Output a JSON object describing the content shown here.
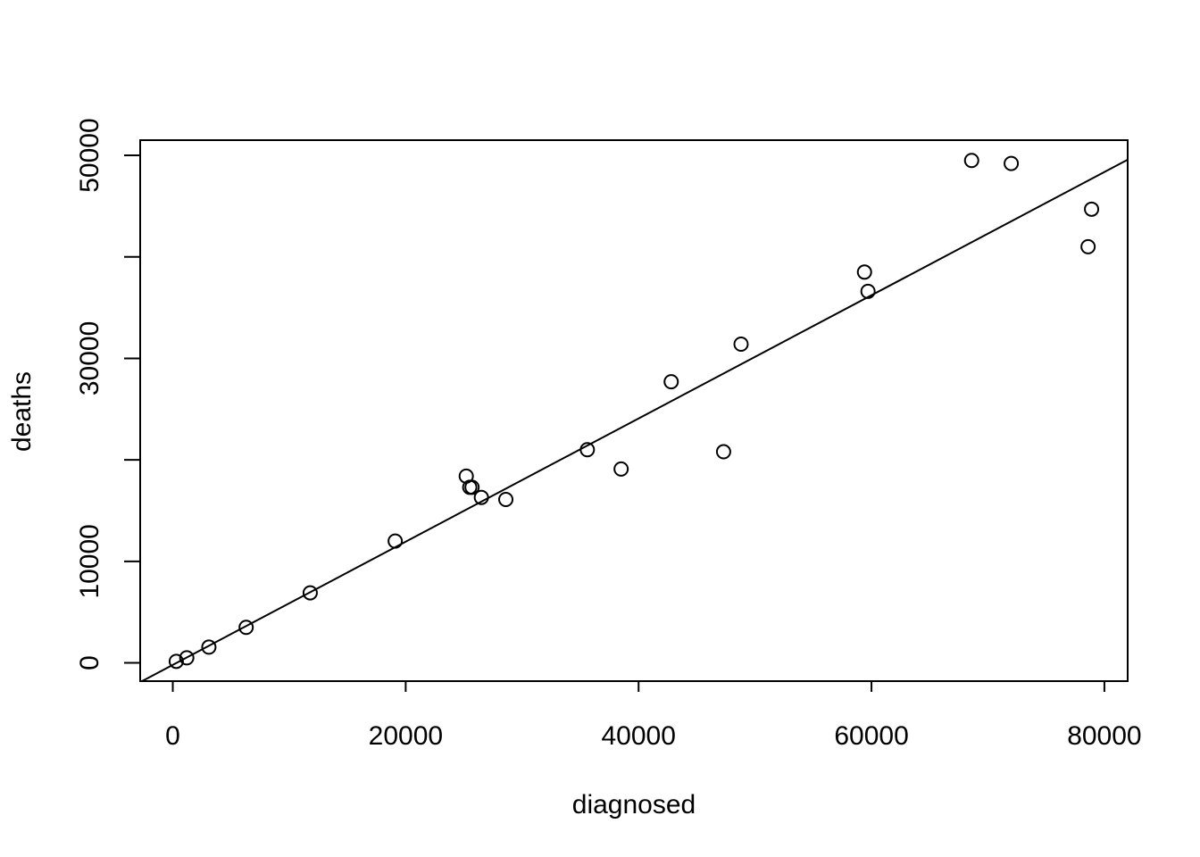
{
  "chart_data": {
    "type": "scatter",
    "xlabel": "diagnosed",
    "ylabel": "deaths",
    "xlim": [
      -2800,
      82000
    ],
    "ylim": [
      -1800,
      51500
    ],
    "x_ticks": [
      0,
      20000,
      40000,
      60000,
      80000
    ],
    "y_ticks": [
      0,
      10000,
      20000,
      30000,
      40000,
      50000
    ],
    "y_tick_labels": [
      "0",
      "10000",
      "",
      "30000",
      "",
      "50000"
    ],
    "x_tick_labels": [
      "0",
      "20000",
      "40000",
      "60000",
      "80000"
    ],
    "grid": false,
    "legend": "none",
    "points": [
      {
        "x": 300,
        "y": 150
      },
      {
        "x": 1200,
        "y": 500
      },
      {
        "x": 3100,
        "y": 1550
      },
      {
        "x": 6300,
        "y": 3500
      },
      {
        "x": 11800,
        "y": 6900
      },
      {
        "x": 19100,
        "y": 12000
      },
      {
        "x": 25200,
        "y": 18400
      },
      {
        "x": 25500,
        "y": 17300
      },
      {
        "x": 25700,
        "y": 17300
      },
      {
        "x": 26500,
        "y": 16300
      },
      {
        "x": 28600,
        "y": 16100
      },
      {
        "x": 35600,
        "y": 21000
      },
      {
        "x": 38500,
        "y": 19100
      },
      {
        "x": 42800,
        "y": 27700
      },
      {
        "x": 47300,
        "y": 20800
      },
      {
        "x": 48800,
        "y": 31400
      },
      {
        "x": 59400,
        "y": 38500
      },
      {
        "x": 59700,
        "y": 36600
      },
      {
        "x": 68600,
        "y": 49500
      },
      {
        "x": 72000,
        "y": 49200
      },
      {
        "x": 78600,
        "y": 41000
      },
      {
        "x": 78900,
        "y": 44700
      }
    ],
    "fit_line": {
      "intercept": -200,
      "slope": 0.607
    }
  }
}
